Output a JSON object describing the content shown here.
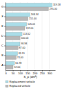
{
  "chart_data": {
    "type": "bar",
    "orientation": "horizontal",
    "categories": [
      "A",
      "B",
      "C",
      "D",
      "E",
      "F",
      "G"
    ],
    "series": [
      {
        "name": "Replacement vehicle",
        "color": "#aadde8",
        "values": [
          61.98,
          83.19,
          98.98,
          113.62,
          145.01,
          168.34,
          319.58
        ]
      },
      {
        "name": "Replaced vehicle",
        "color": "#b8b8b8",
        "values": [
          52.0,
          74.0,
          87.0,
          100.0,
          132.0,
          155.0,
          295.0
        ],
        "value_labels": [
          "52.00",
          "74.00",
          "87.00",
          "100.00",
          "132.00",
          "155.00",
          "295.00"
        ]
      }
    ],
    "xlabel": "S_p (dm²)",
    "xlim": [
      0,
      340
    ],
    "xticks": [
      0,
      50,
      100,
      150,
      200,
      250,
      300
    ],
    "grid": true,
    "data_labels": true,
    "legend": "bottom"
  }
}
